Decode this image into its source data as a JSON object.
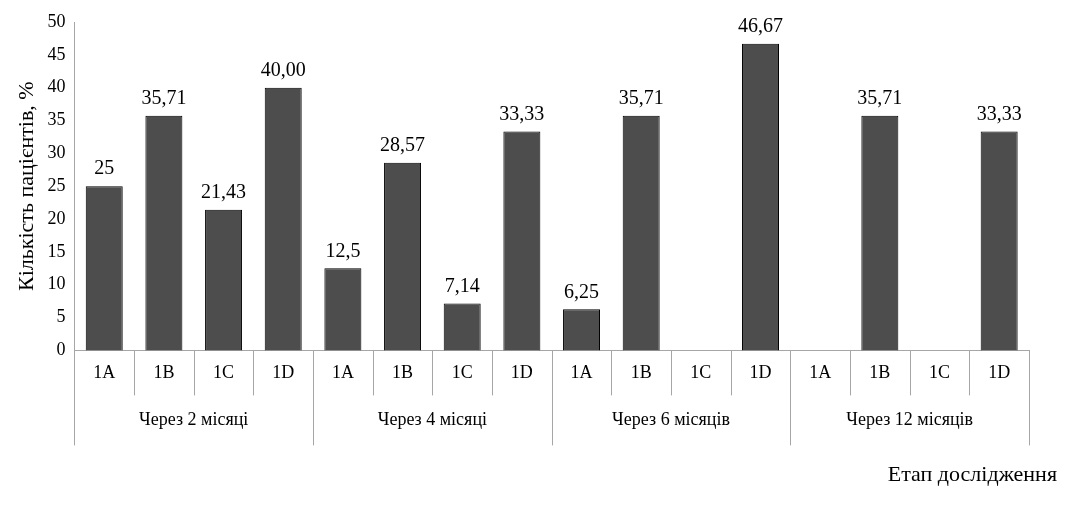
{
  "chart_data": {
    "type": "bar",
    "ylabel": "Кількість пацієнтів, %",
    "xlabel": "Етап дослідження",
    "categories": [
      "1A",
      "1B",
      "1C",
      "1D",
      "1A",
      "1B",
      "1C",
      "1D",
      "1A",
      "1B",
      "1C",
      "1D",
      "1A",
      "1B",
      "1C",
      "1D"
    ],
    "values": [
      25,
      35.71,
      21.43,
      40.0,
      12.5,
      28.57,
      7.14,
      33.33,
      6.25,
      35.71,
      0,
      46.67,
      0,
      35.71,
      0,
      33.33
    ],
    "value_labels": [
      "25",
      "35,71",
      "21,43",
      "40,00",
      "12,5",
      "28,57",
      "7,14",
      "33,33",
      "6,25",
      "35,71",
      null,
      "46,67",
      null,
      "35,71",
      null,
      "33,33"
    ],
    "color": "#4d4d4d",
    "annotations": [
      "Через 2 місяці",
      "Через 4 місяці",
      "Через 6 місяців",
      "Через 12 місяців"
    ],
    "ylim": [
      0,
      50
    ],
    "yticks": [
      0,
      5,
      10,
      15,
      20,
      25,
      30,
      35,
      40,
      45,
      50
    ],
    "grid": false,
    "legend": false
  }
}
